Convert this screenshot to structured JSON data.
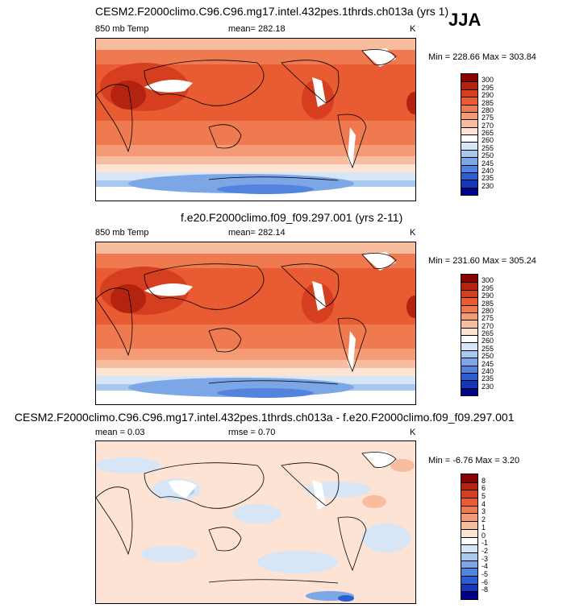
{
  "season": "JJA",
  "panels": [
    {
      "title": "CESM2.F2000climo.C96.C96.mg17.intel.432pes.1thrds.ch013a (yrs 1)",
      "variable": "850 mb Temp",
      "mean_label": "mean= 282.18",
      "rmse_label": "",
      "units": "K",
      "minmax": "Min = 228.66 Max = 303.84",
      "colorbar_labels": [
        "300",
        "295",
        "290",
        "285",
        "280",
        "275",
        "270",
        "265",
        "260",
        "255",
        "250",
        "245",
        "240",
        "235",
        "230"
      ]
    },
    {
      "title": "f.e20.F2000climo.f09_f09.297.001 (yrs 2-11)",
      "variable": "850 mb Temp",
      "mean_label": "mean= 282.14",
      "rmse_label": "",
      "units": "K",
      "minmax": "Min = 231.60 Max = 305.24",
      "colorbar_labels": [
        "300",
        "295",
        "290",
        "285",
        "280",
        "275",
        "270",
        "265",
        "260",
        "255",
        "250",
        "245",
        "240",
        "235",
        "230"
      ]
    },
    {
      "title": "CESM2.F2000climo.C96.C96.mg17.intel.432pes.1thrds.ch013a - f.e20.F2000climo.f09_f09.297.001",
      "variable": "",
      "mean_label": "mean =   0.03",
      "rmse_label": "rmse =   0.70",
      "units": "K",
      "minmax": "Min =  -6.76 Max =   3.20",
      "colorbar_labels": [
        "8",
        "6",
        "5",
        "4",
        "3",
        "2",
        "1",
        "0",
        "-1",
        "-2",
        "-3",
        "-4",
        "-5",
        "-6",
        "-8"
      ]
    }
  ],
  "colors": {
    "abs_scale": [
      "#8b0000",
      "#b4230f",
      "#d53e1f",
      "#e85b33",
      "#f07a50",
      "#f49a75",
      "#f8bc9f",
      "#fde3d3",
      "#ffffff",
      "#d6e6f7",
      "#a9c8ee",
      "#7ca6e5",
      "#5284de",
      "#2d5ed1",
      "#1537b8",
      "#00008b"
    ],
    "diff_scale": [
      "#8b0000",
      "#b4230f",
      "#d53e1f",
      "#e85b33",
      "#f07a50",
      "#f49a75",
      "#f8bc9f",
      "#fde3d3",
      "#ffffff",
      "#d6e6f7",
      "#a9c8ee",
      "#7ca6e5",
      "#5284de",
      "#2d5ed1",
      "#1537b8",
      "#00008b"
    ]
  },
  "chart_data": [
    {
      "type": "heatmap",
      "title": "CESM2.F2000climo.C96.C96.mg17.intel.432pes.1thrds.ch013a (yrs 1)",
      "variable": "850 mb Temp",
      "units": "K",
      "mean": 282.18,
      "min": 228.66,
      "max": 303.84,
      "contour_levels": [
        230,
        235,
        240,
        245,
        250,
        255,
        260,
        265,
        270,
        275,
        280,
        285,
        290,
        295,
        300
      ]
    },
    {
      "type": "heatmap",
      "title": "f.e20.F2000climo.f09_f09.297.001 (yrs 2-11)",
      "variable": "850 mb Temp",
      "units": "K",
      "mean": 282.14,
      "min": 231.6,
      "max": 305.24,
      "contour_levels": [
        230,
        235,
        240,
        245,
        250,
        255,
        260,
        265,
        270,
        275,
        280,
        285,
        290,
        295,
        300
      ]
    },
    {
      "type": "heatmap",
      "title": "CESM2.F2000climo.C96.C96.mg17.intel.432pes.1thrds.ch013a - f.e20.F2000climo.f09_f09.297.001",
      "units": "K",
      "mean": 0.03,
      "rmse": 0.7,
      "min": -6.76,
      "max": 3.2,
      "contour_levels": [
        -8,
        -6,
        -5,
        -4,
        -3,
        -2,
        -1,
        0,
        1,
        2,
        3,
        4,
        5,
        6,
        8
      ]
    }
  ]
}
